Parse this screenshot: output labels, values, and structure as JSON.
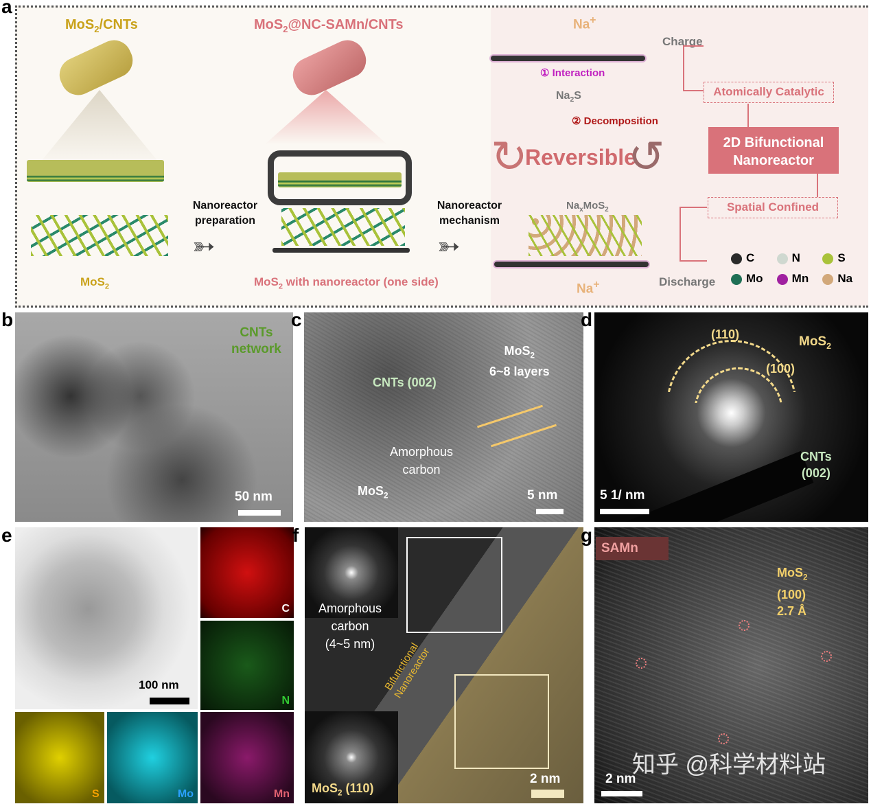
{
  "panel_labels": {
    "a": "a",
    "b": "b",
    "c": "c",
    "d": "d",
    "e": "e",
    "f": "f",
    "g": "g"
  },
  "panel_a": {
    "title1": {
      "pre": "MoS",
      "sub": "2",
      "post": "/CNTs"
    },
    "title2": {
      "pre": "MoS",
      "sub": "2",
      "post": "@NC-SAMn/CNTs"
    },
    "mos2": {
      "pre": "MoS",
      "sub": "2"
    },
    "mos2_nano": {
      "pre": "MoS",
      "sub": "2",
      "post": " with nanoreactor (one side)"
    },
    "step1": [
      "Nanoreactor",
      "preparation"
    ],
    "step2": [
      "Nanoreactor",
      "mechanism"
    ],
    "na_top": {
      "pre": "Na",
      "sup": "+"
    },
    "na_bottom": {
      "pre": "Na",
      "sup": "+"
    },
    "charge": "Charge",
    "discharge": "Discharge",
    "interaction": "① Interaction",
    "na2s": {
      "pre": "Na",
      "sub": "2",
      "post": "S"
    },
    "decomposition": "② Decomposition",
    "reversible": "Reversible",
    "naxmos2": {
      "pre": "Na",
      "sub": "x",
      "post": "MoS",
      "sub2": "2"
    },
    "atomically_catalytic": "Atomically Catalytic",
    "bifunctional": [
      "2D Bifunctional",
      "Nanoreactor"
    ],
    "spatial_confined": "Spatial Confined",
    "legend": [
      {
        "label": "C",
        "color": "#2a2a2a"
      },
      {
        "label": "N",
        "color": "#cfd8d0"
      },
      {
        "label": "S",
        "color": "#a9c23a"
      },
      {
        "label": "Mo",
        "color": "#1f6f55"
      },
      {
        "label": "Mn",
        "color": "#a020a0"
      },
      {
        "label": "Na",
        "color": "#d2a87a"
      }
    ],
    "colors": {
      "gold": "#c9a21a",
      "pink": "#d9727a",
      "decomp": "#b01818",
      "interaction": "#c020c0"
    }
  },
  "panel_b": {
    "annotation": [
      "CNTs",
      "network"
    ],
    "scale": "50 nm"
  },
  "panel_c": {
    "cnts": "CNTs (002)",
    "mos2_layers": {
      "pre": "MoS",
      "sub": "2",
      "line2": "6~8 layers"
    },
    "amorphous": [
      "Amorphous",
      "carbon"
    ],
    "mos2": {
      "pre": "MoS",
      "sub": "2"
    },
    "scale": "5 nm"
  },
  "panel_d": {
    "r110": "(110)",
    "r100": "(100)",
    "mos2": {
      "pre": "MoS",
      "sub": "2"
    },
    "cnts": [
      "CNTs",
      "(002)"
    ],
    "scale": "5 1/ nm"
  },
  "panel_e": {
    "scale": "100 nm",
    "maps": {
      "C": "C",
      "N": "N",
      "S": "S",
      "Mo": "Mo",
      "Mn": "Mn"
    }
  },
  "panel_f": {
    "amorphous": [
      "Amorphous",
      "carbon",
      "(4~5 nm)"
    ],
    "bifunctional": [
      "Bifunctional",
      "Nanoreactor"
    ],
    "mos2": {
      "pre": "MoS",
      "sub": "2",
      "post": " (110)"
    },
    "scale": "2 nm"
  },
  "panel_g": {
    "samn": "SAMn",
    "mos2": {
      "pre": "MoS",
      "sub": "2",
      "line2": "(100)",
      "line3": "2.7 Å"
    },
    "scale": "2 nm",
    "watermark": "知乎 @科学材料站"
  }
}
